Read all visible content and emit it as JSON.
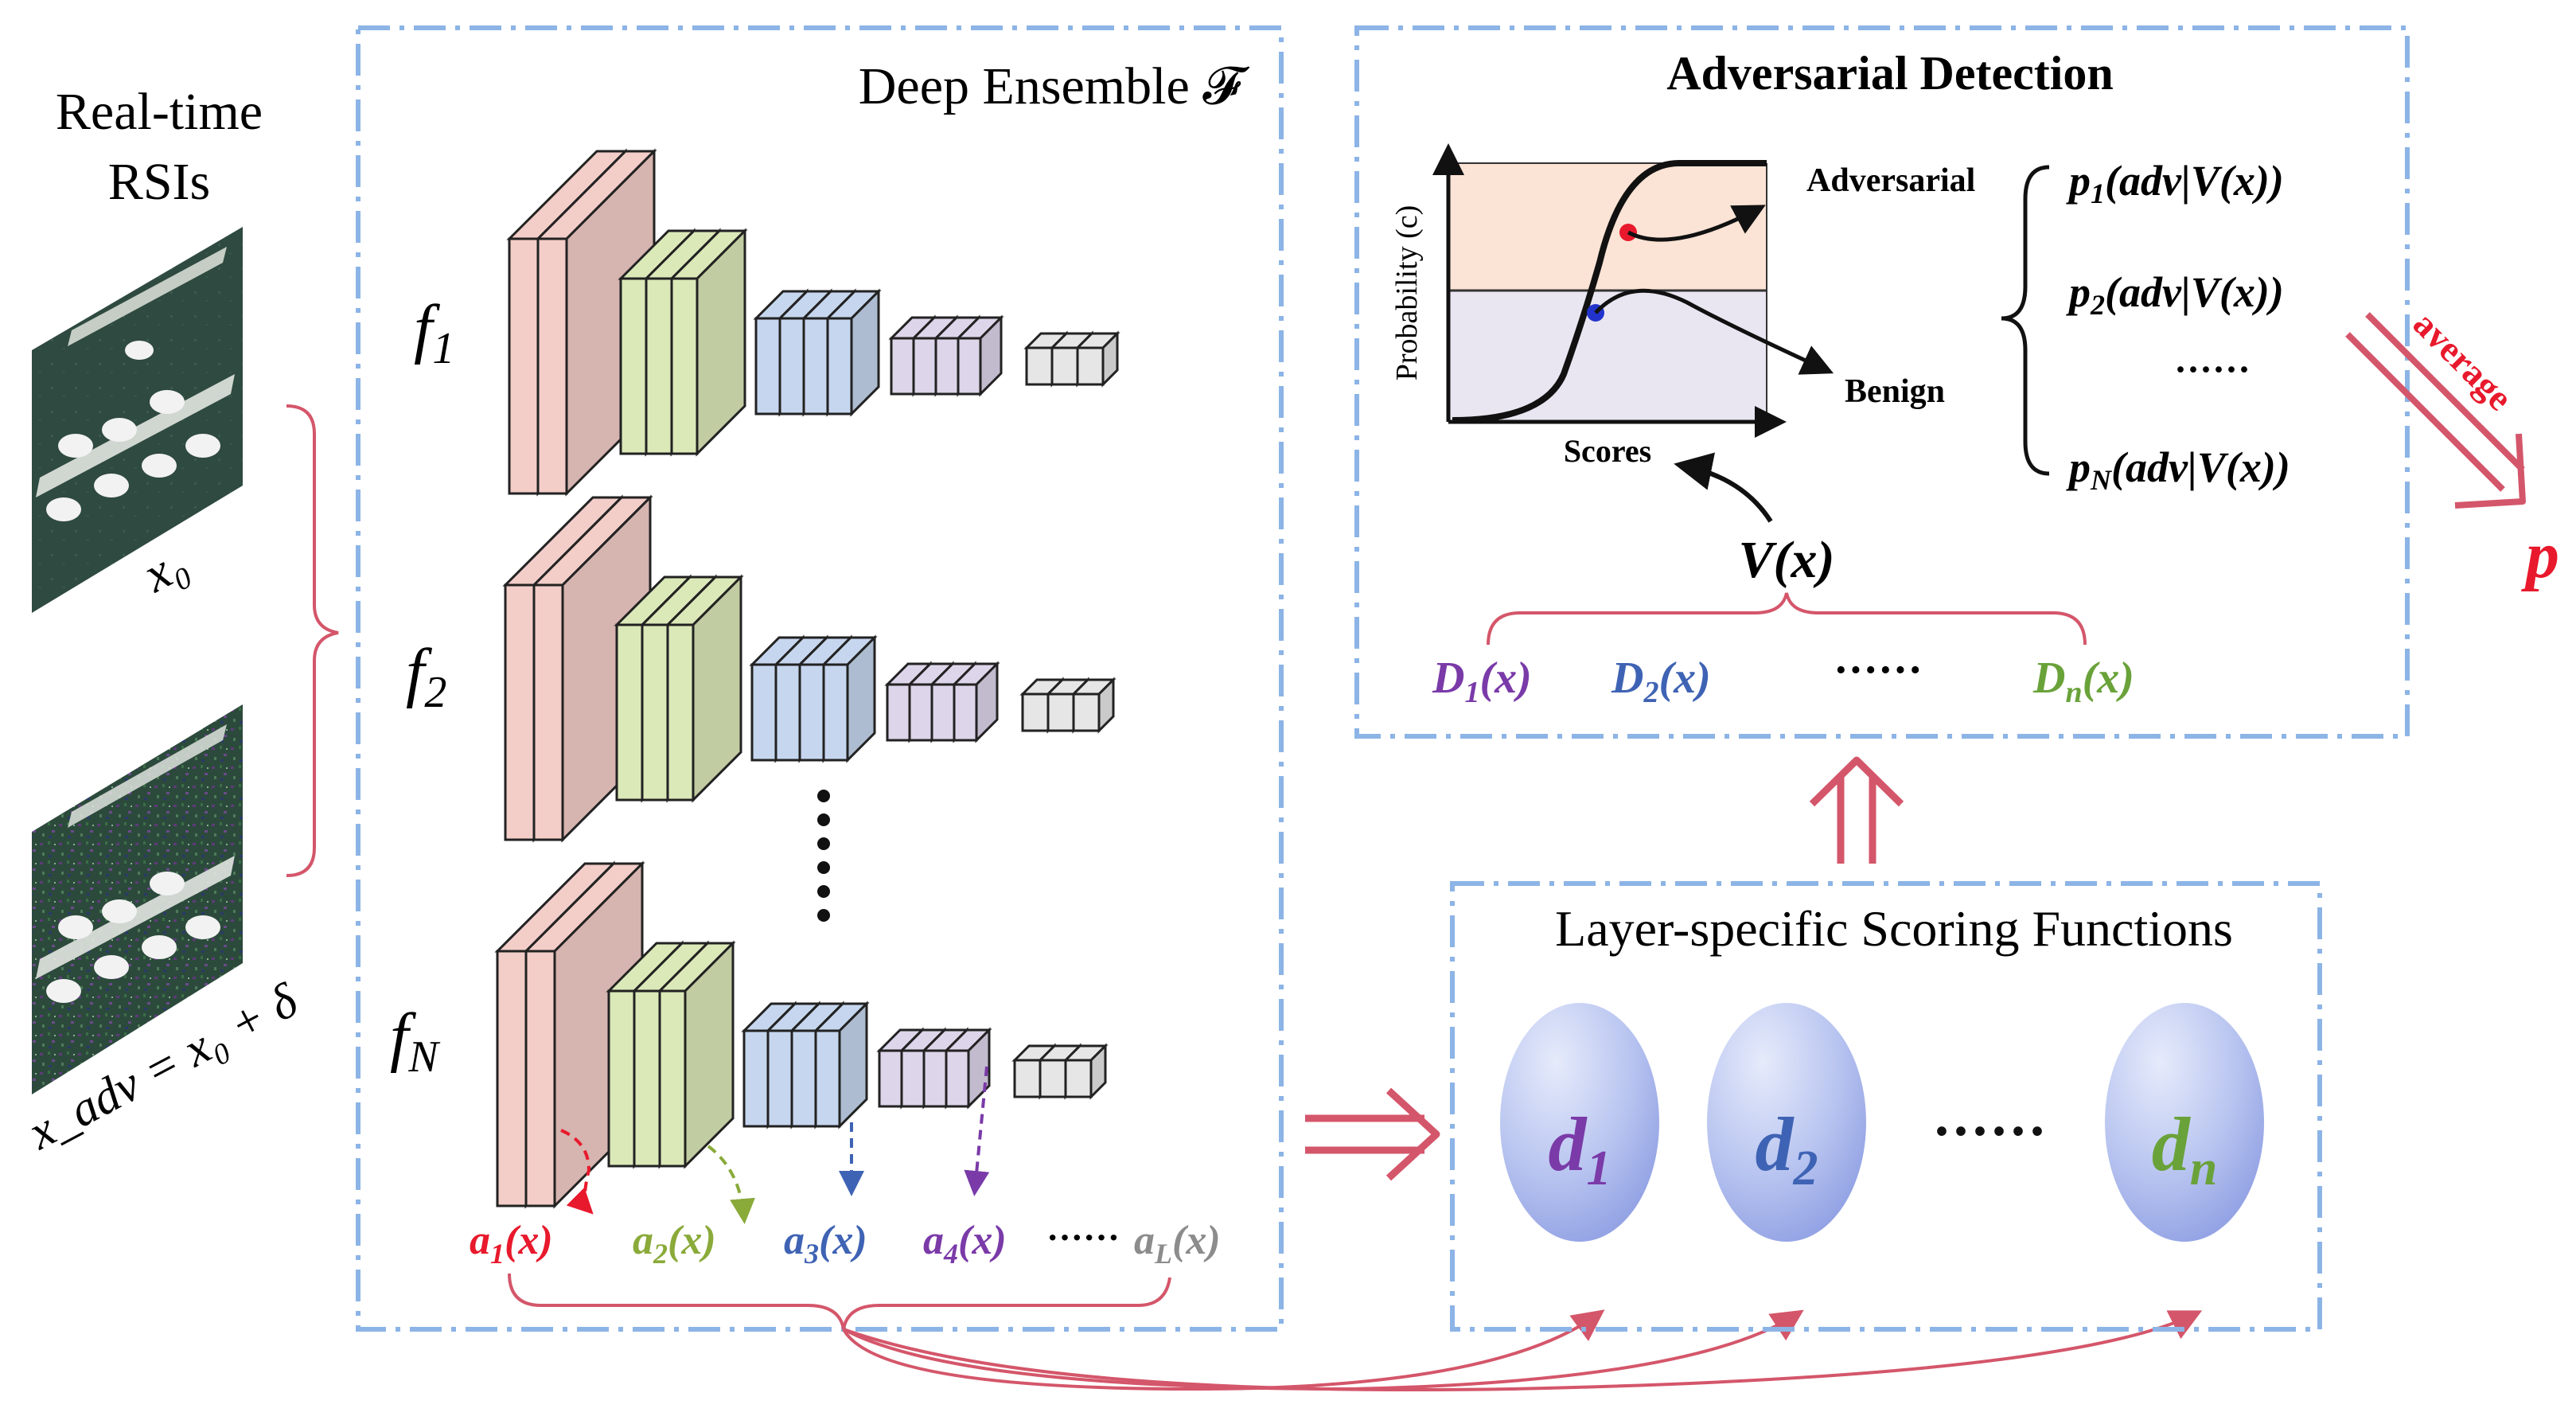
{
  "left_panel": {
    "title_line1": "Real-time",
    "title_line2": "RSIs",
    "clean_image_label": "x₀",
    "adv_image_label": "x_adv = x₀ + δ"
  },
  "ensemble": {
    "title": "Deep Ensemble 𝓕",
    "models": [
      "f",
      "f",
      "f"
    ],
    "model_subscripts": [
      "1",
      "2",
      "N"
    ],
    "ellipsis": "⋮",
    "activations": [
      {
        "label": "a",
        "sub": "1",
        "arg": "(x)",
        "color": "#e8192c"
      },
      {
        "label": "a",
        "sub": "2",
        "arg": "(x)",
        "color": "#8aaa3a"
      },
      {
        "label": "a",
        "sub": "3",
        "arg": "(x)",
        "color": "#3f63b4"
      },
      {
        "label": "a",
        "sub": "4",
        "arg": "(x)",
        "color": "#7a3aa8"
      },
      {
        "label": "a",
        "sub": "L",
        "arg": "(x)",
        "color": "#8c8c8c"
      }
    ],
    "activation_ellipsis": "······"
  },
  "detection": {
    "title": "Adversarial Detection",
    "y_axis": "Probability (c)",
    "x_axis": "Scores",
    "adversarial_label": "Adversarial",
    "benign_label": "Benign",
    "probs": [
      {
        "p": "p",
        "sub": "1",
        "rest": "(adv|V(x))"
      },
      {
        "p": "p",
        "sub": "2",
        "rest": "(adv|V(x))"
      },
      {
        "p": "p",
        "sub": "N",
        "rest": "(adv|V(x))"
      }
    ],
    "probs_ellipsis": "······",
    "aggregate": "V(x)",
    "detectors": [
      {
        "label": "D",
        "sub": "1",
        "arg": "(x)",
        "color": "#7a3aa8"
      },
      {
        "label": "D",
        "sub": "2",
        "arg": "(x)",
        "color": "#3f63b4"
      },
      {
        "label": "D",
        "sub": "n",
        "arg": "(x)",
        "color": "#6aa23a"
      }
    ],
    "detectors_ellipsis": "······",
    "average_label": "average",
    "output": "p"
  },
  "scoring": {
    "title": "Layer-specific Scoring Functions",
    "functions": [
      {
        "label": "d",
        "sub": "1",
        "color": "#7a3aa8"
      },
      {
        "label": "d",
        "sub": "2",
        "color": "#3f63b4"
      },
      {
        "label": "d",
        "sub": "n",
        "color": "#6aa23a"
      }
    ],
    "ellipsis": "······"
  },
  "colors": {
    "frame": "#8cb4e6",
    "arrow": "#d4566a",
    "red": "#e8192c",
    "pink_block": "#f3cdc8",
    "green_block": "#dbe8b8",
    "blue_block": "#c6d6ee",
    "purple_block": "#ddd5ea",
    "gray_block": "#e6e6e6"
  }
}
